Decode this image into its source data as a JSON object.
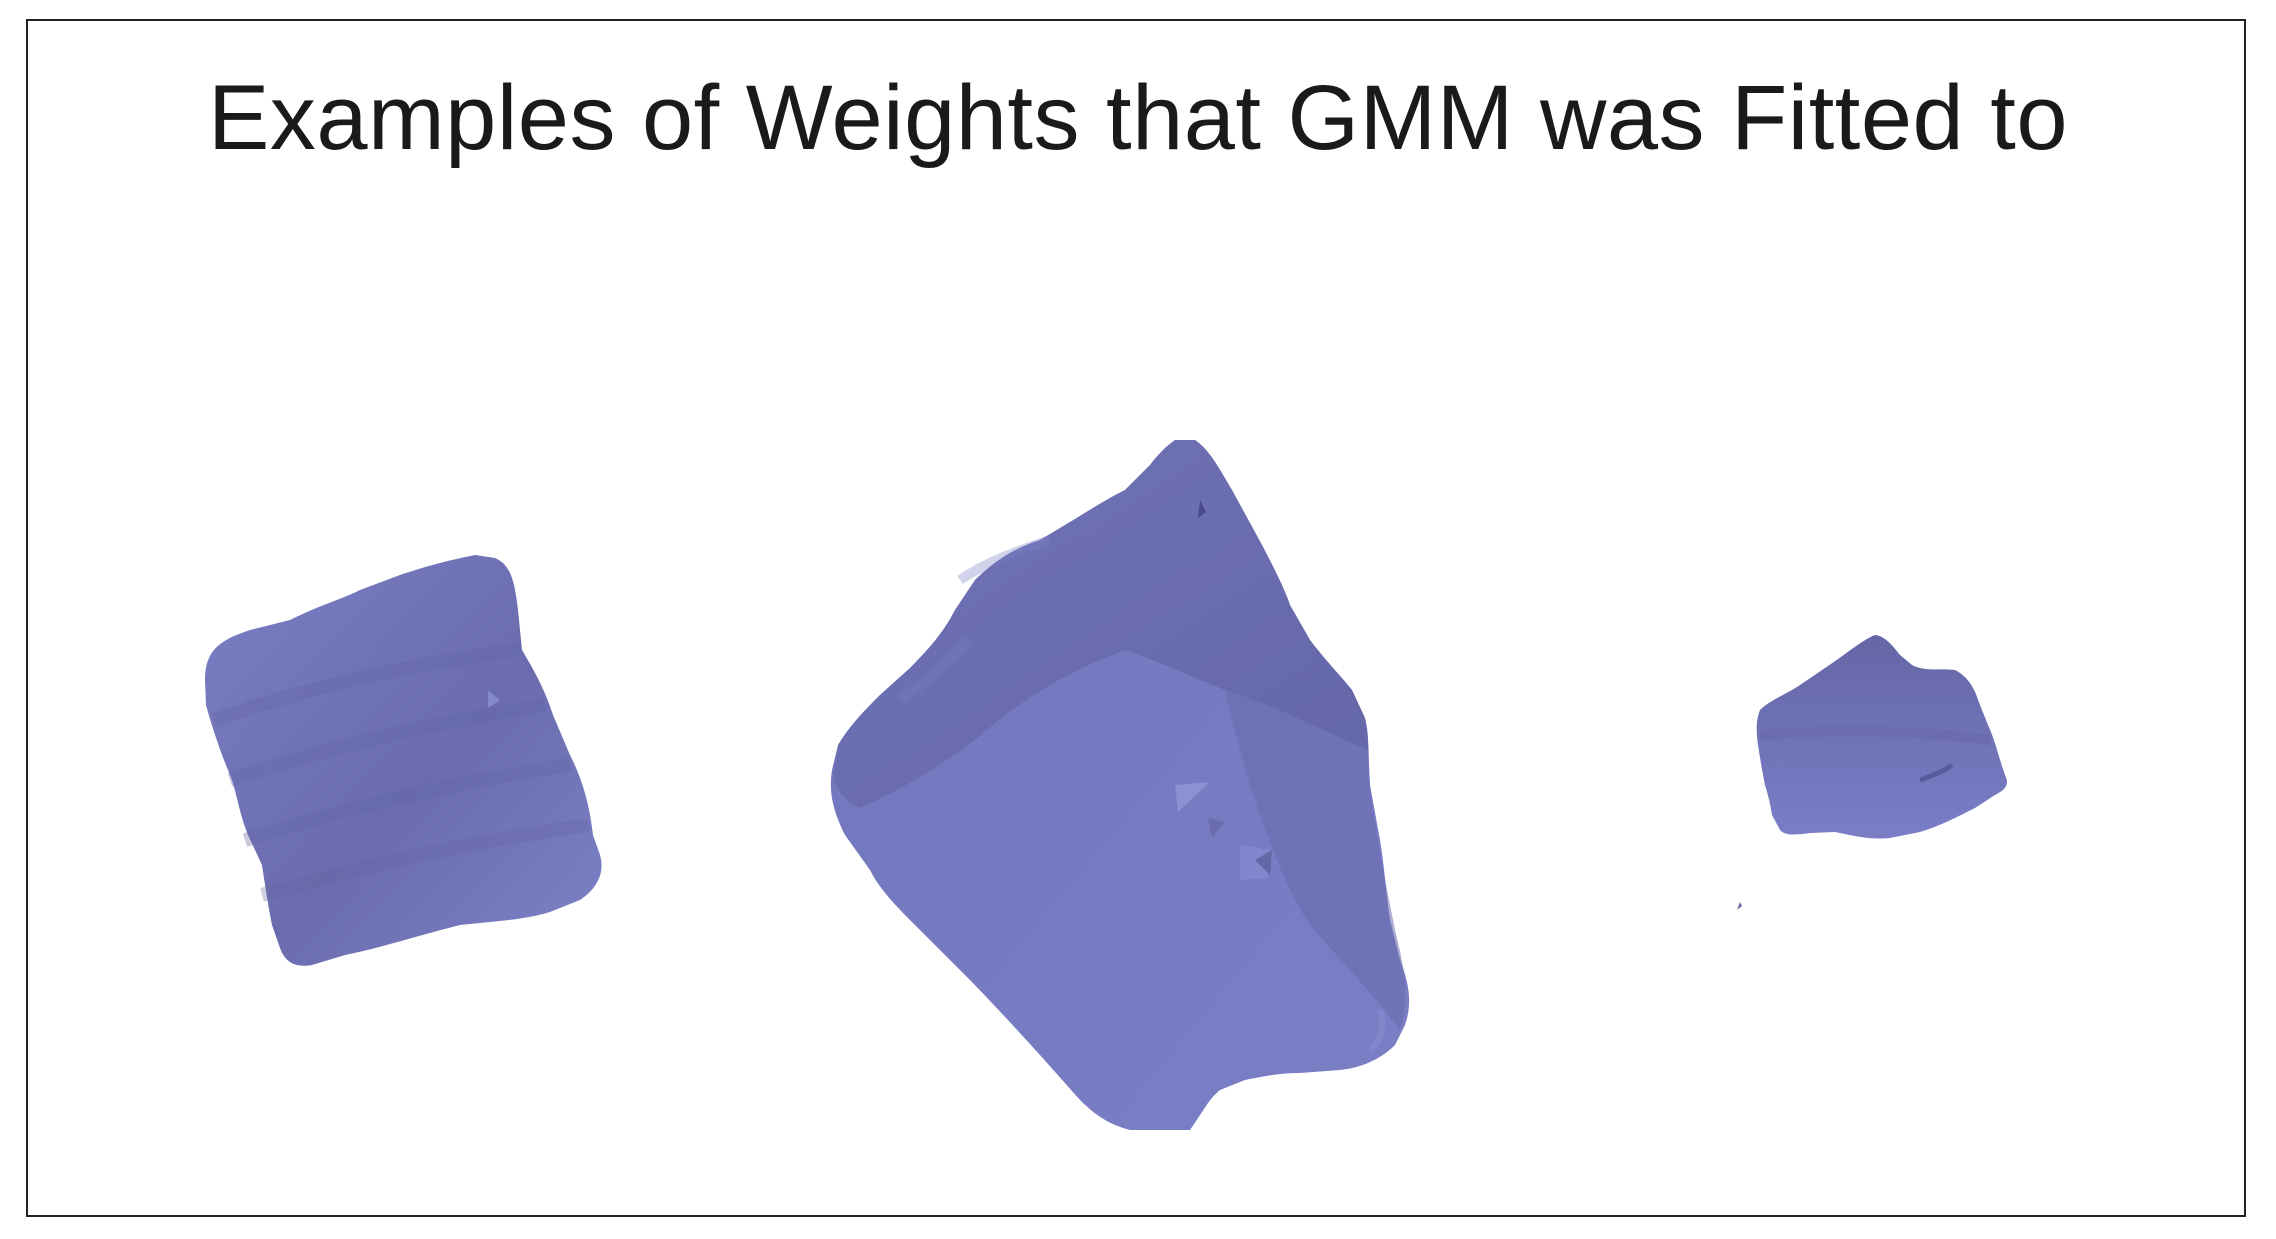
{
  "figure": {
    "title": "Examples of Weights that GMM was Fitted to"
  },
  "colors": {
    "surface": "#7478be",
    "surface_dark": "#6466a6",
    "surface_light": "#8489cf",
    "border": "#222222",
    "title_text": "#1a1a1a"
  },
  "shapes": [
    {
      "name": "left-blob",
      "kind": "rounded cube"
    },
    {
      "name": "center-blob",
      "kind": "tilted cube"
    },
    {
      "name": "right-blob",
      "kind": "small lump"
    }
  ]
}
